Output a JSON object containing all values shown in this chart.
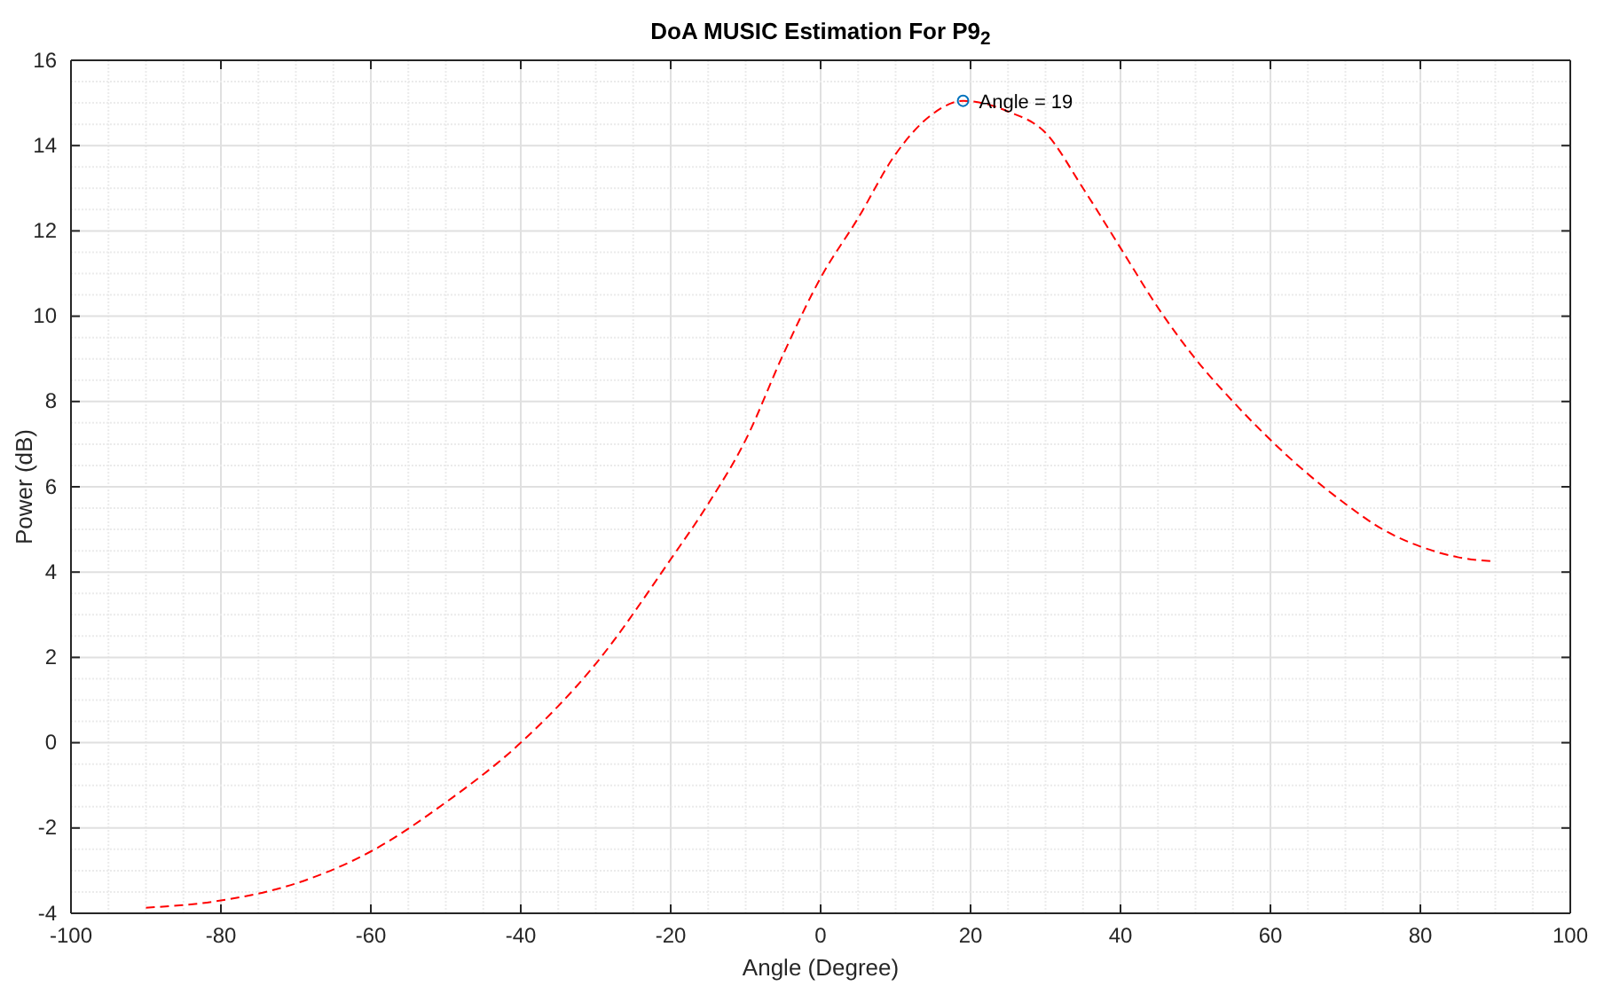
{
  "chart_data": {
    "type": "line",
    "title": "DoA MUSIC Estimation For P9$_{2}$",
    "xlabel": "Angle (Degree)",
    "ylabel": "Power (dB)",
    "xlim": [
      -100,
      100
    ],
    "xticks": [
      -100,
      -80,
      -60,
      -40,
      -20,
      0,
      20,
      40,
      60,
      80,
      100
    ],
    "ylim": [
      -4,
      16
    ],
    "yticks": [
      -4,
      -2,
      0,
      2,
      4,
      6,
      8,
      10,
      12,
      14,
      16
    ],
    "grid": true,
    "line_style": "dashed",
    "marker": "none",
    "series": [
      {
        "color": "#ff0000",
        "x": [
          -90,
          -80,
          -70,
          -60,
          -50,
          -40,
          -30,
          -20,
          -15,
          -10,
          -5,
          0,
          5,
          10,
          15,
          19,
          25,
          30,
          35,
          40,
          45,
          50,
          55,
          60,
          65,
          70,
          75,
          80,
          85,
          90
        ],
        "values": [
          -3.87,
          -3.7,
          -3.3,
          -2.55,
          -1.4,
          0,
          1.85,
          4.3,
          5.6,
          7.1,
          9.1,
          10.9,
          12.3,
          13.8,
          14.75,
          15.05,
          14.8,
          14.3,
          13.0,
          11.6,
          10.2,
          9.0,
          8.0,
          7.1,
          6.3,
          5.6,
          5.0,
          4.6,
          4.35,
          4.25
        ]
      },
      {
        "type": "scatter",
        "color": "#0072bd",
        "marker": "circle",
        "x": [
          19
        ],
        "values": [
          15.05
        ]
      }
    ],
    "annotations": [
      {
        "text": "Angle = 19",
        "x": 19,
        "y": 15.05
      }
    ]
  }
}
